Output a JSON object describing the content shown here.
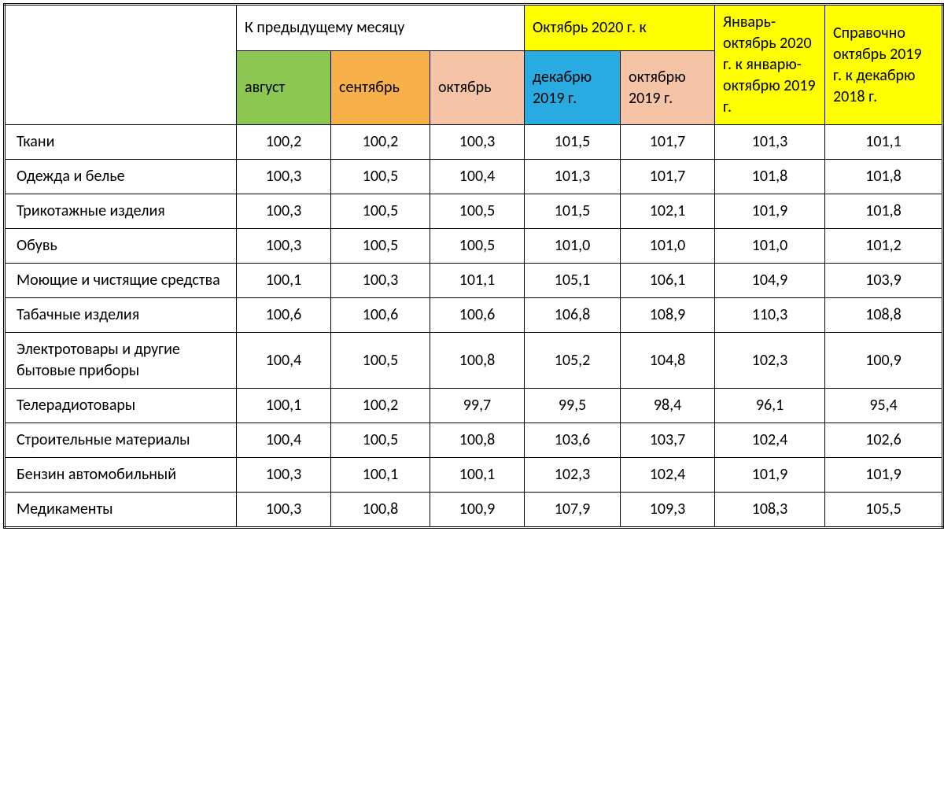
{
  "type": "table",
  "font_family": "Calibri",
  "body_fontsize_pt": 15,
  "border_color": "#000000",
  "background_color": "#ffffff",
  "colors": {
    "green": "#8cc751",
    "orange": "#f7b04a",
    "peach": "#f5c3a6",
    "blue": "#29abe2",
    "yellow": "#ffff00",
    "white": "#ffffff"
  },
  "header": {
    "row1": {
      "prev_month": {
        "label": "К предыдущему месяцу",
        "bg": "white"
      },
      "oct2020": {
        "label": "Октябрь 2020 г. к",
        "bg": "yellow"
      },
      "jan_oct": {
        "label": "Январь-октябрь 2020 г. к январю-октябрю 2019 г.",
        "bg": "yellow"
      },
      "ref": {
        "label": "Справочно октябрь 2019 г.  к декабрю 2018 г.",
        "bg": "yellow"
      }
    },
    "row2": {
      "aug": {
        "label": "август",
        "bg": "green"
      },
      "sep": {
        "label": "сентябрь",
        "bg": "orange"
      },
      "oct": {
        "label": "октябрь",
        "bg": "peach"
      },
      "dec2019": {
        "label": "декабрю 2019 г.",
        "bg": "blue"
      },
      "oct2019": {
        "label": "октябрю 2019 г.",
        "bg": "peach"
      }
    }
  },
  "rows": [
    {
      "label": "Ткани",
      "v": [
        "100,2",
        "100,2",
        "100,3",
        "101,5",
        "101,7",
        "101,3",
        "101,1"
      ]
    },
    {
      "label": "Одежда и белье",
      "v": [
        "100,3",
        "100,5",
        "100,4",
        "101,3",
        "101,7",
        "101,8",
        "101,8"
      ]
    },
    {
      "label": "Трикотажные изделия",
      "v": [
        "100,3",
        "100,5",
        "100,5",
        "101,5",
        "102,1",
        "101,9",
        "101,8"
      ]
    },
    {
      "label": "Обувь",
      "v": [
        "100,3",
        "100,5",
        "100,5",
        "101,0",
        "101,0",
        "101,0",
        "101,2"
      ]
    },
    {
      "label": "Моющие и чистящие средства",
      "v": [
        "100,1",
        "100,3",
        "101,1",
        "105,1",
        "106,1",
        "104,9",
        "103,9"
      ]
    },
    {
      "label": "Табачные изделия",
      "v": [
        "100,6",
        "100,6",
        "100,6",
        "106,8",
        "108,9",
        "110,3",
        "108,8"
      ]
    },
    {
      "label": "Электротовары и другие  бытовые приборы",
      "v": [
        "100,4",
        "100,5",
        "100,8",
        "105,2",
        "104,8",
        "102,3",
        "100,9"
      ]
    },
    {
      "label": "Телерадиотовары",
      "v": [
        "100,1",
        "100,2",
        "99,7",
        "99,5",
        "98,4",
        "96,1",
        "95,4"
      ]
    },
    {
      "label": "Строительные материалы",
      "v": [
        "100,4",
        "100,5",
        "100,8",
        "103,6",
        "103,7",
        "102,4",
        "102,6"
      ]
    },
    {
      "label": "Бензин автомобильный",
      "v": [
        "100,3",
        "100,1",
        "100,1",
        "102,3",
        "102,4",
        "101,9",
        "101,9"
      ]
    },
    {
      "label": "Медикаменты",
      "v": [
        "100,3",
        "100,8",
        "100,9",
        "107,9",
        "109,3",
        "108,3",
        "105,5"
      ]
    }
  ]
}
